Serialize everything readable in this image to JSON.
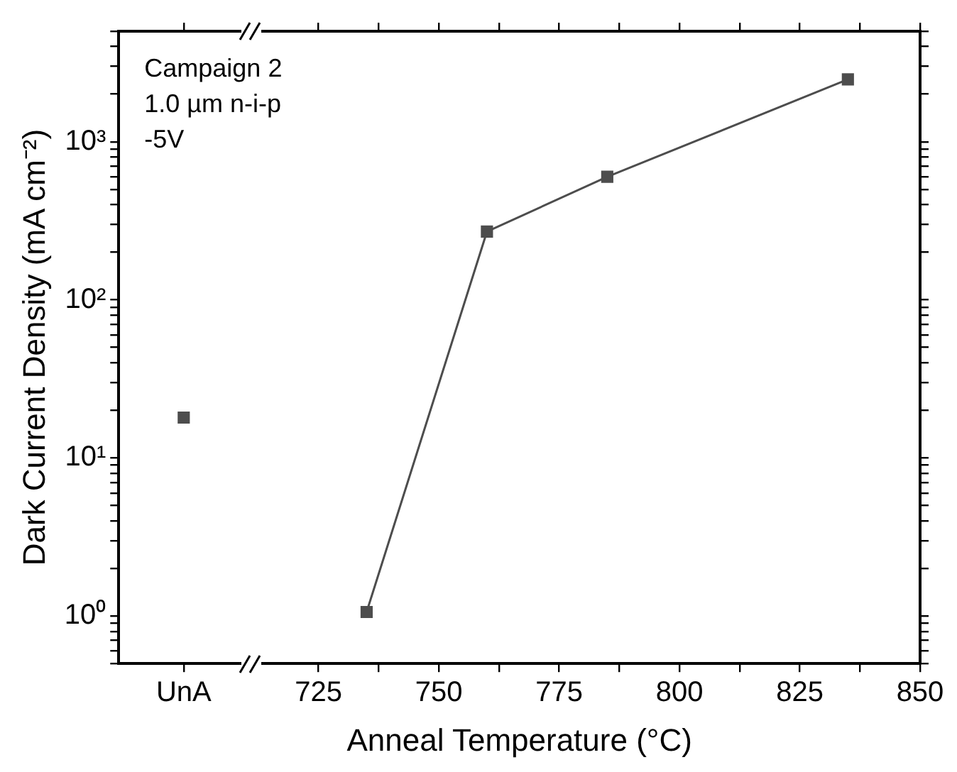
{
  "chart_data": {
    "type": "scatter",
    "xlabel": "Anneal Temperature (°C)",
    "ylabel": "Dark Current Density (mA cm⁻²)",
    "annotations": [
      "Campaign 2",
      "1.0 µm n-i-p",
      "-5V"
    ],
    "series": [
      {
        "type": "scatter",
        "color": "#4d4d4d",
        "x": [
          697
        ],
        "values": [
          18
        ]
      },
      {
        "type": "line",
        "color": "#4d4d4d",
        "x": [
          735,
          760,
          785,
          835
        ],
        "values": [
          1.06,
          270,
          600,
          2480
        ]
      }
    ],
    "marker": "square",
    "log": "y",
    "xlim": [
      683.5,
      850
    ],
    "xticks": [
      {
        "value": 697,
        "label": "UnA"
      },
      725,
      {
        "value": 737.5,
        "label": null
      },
      750,
      {
        "value": 762.5,
        "label": null
      },
      775,
      {
        "value": 787.5,
        "label": null
      },
      800,
      {
        "value": 812.5,
        "label": null
      },
      825,
      {
        "value": 837.5,
        "label": null
      },
      850
    ],
    "ylim": [
      0.5,
      5000
    ],
    "yticks": [
      {
        "value": 0.5,
        "label": null
      },
      {
        "value": 0.6,
        "label": null
      },
      {
        "value": 0.7,
        "label": null
      },
      {
        "value": 0.8,
        "label": null
      },
      {
        "value": 0.9,
        "label": null
      },
      {
        "value": 1,
        "label": "10⁰"
      },
      {
        "value": 2,
        "label": null
      },
      {
        "value": 3,
        "label": null
      },
      {
        "value": 4,
        "label": null
      },
      {
        "value": 5,
        "label": null
      },
      {
        "value": 6,
        "label": null
      },
      {
        "value": 7,
        "label": null
      },
      {
        "value": 8,
        "label": null
      },
      {
        "value": 9,
        "label": null
      },
      {
        "value": 10,
        "label": "10¹"
      },
      {
        "value": 20,
        "label": null
      },
      {
        "value": 30,
        "label": null
      },
      {
        "value": 40,
        "label": null
      },
      {
        "value": 50,
        "label": null
      },
      {
        "value": 60,
        "label": null
      },
      {
        "value": 70,
        "label": null
      },
      {
        "value": 80,
        "label": null
      },
      {
        "value": 90,
        "label": null
      },
      {
        "value": 100,
        "label": "10²"
      },
      {
        "value": 200,
        "label": null
      },
      {
        "value": 300,
        "label": null
      },
      {
        "value": 400,
        "label": null
      },
      {
        "value": 500,
        "label": null
      },
      {
        "value": 600,
        "label": null
      },
      {
        "value": 700,
        "label": null
      },
      {
        "value": 800,
        "label": null
      },
      {
        "value": 900,
        "label": null
      },
      {
        "value": 1000,
        "label": "10³"
      },
      {
        "value": 2000,
        "label": null
      },
      {
        "value": 3000,
        "label": null
      },
      {
        "value": 4000,
        "label": null
      },
      {
        "value": 5000,
        "label": null
      }
    ],
    "grid": false,
    "legend": false
  }
}
